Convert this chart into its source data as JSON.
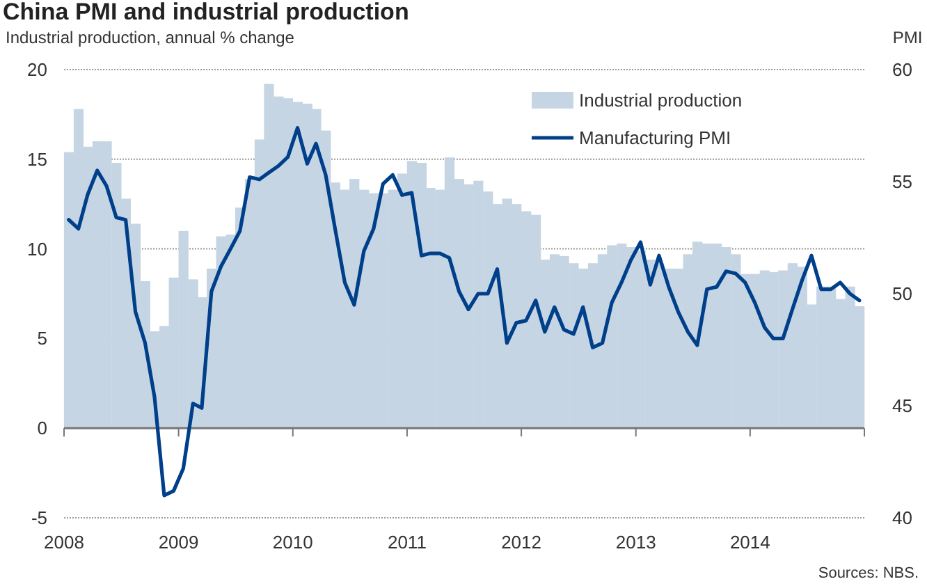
{
  "chart_data": {
    "type": "bar",
    "title": "China PMI and industrial production",
    "ylabel": "Industrial production, annual % change",
    "y2label": "PMI",
    "x": [
      "2008-01-16",
      "2008-02-16",
      "2008-03-16",
      "2008-04-16",
      "2008-05-16",
      "2008-06-16",
      "2008-07-16",
      "2008-08-16",
      "2008-09-16",
      "2008-10-16",
      "2008-11-16",
      "2008-12-16",
      "2009-01-16",
      "2009-02-16",
      "2009-03-16",
      "2009-04-16",
      "2009-05-16",
      "2009-06-16",
      "2009-07-16",
      "2009-08-16",
      "2009-09-16",
      "2009-10-16",
      "2009-11-16",
      "2009-12-16",
      "2010-01-16",
      "2010-02-16",
      "2010-03-16",
      "2010-04-16",
      "2010-05-16",
      "2010-06-16",
      "2010-07-16",
      "2010-08-16",
      "2010-09-16",
      "2010-10-16",
      "2010-11-16",
      "2010-12-16",
      "2011-01-16",
      "2011-02-16",
      "2011-03-16",
      "2011-04-16",
      "2011-05-16",
      "2011-06-16",
      "2011-07-16",
      "2011-08-16",
      "2011-09-16",
      "2011-10-16",
      "2011-11-16",
      "2011-12-16",
      "2012-01-16",
      "2012-02-16",
      "2012-03-16",
      "2012-04-16",
      "2012-05-16",
      "2012-06-16",
      "2012-07-16",
      "2012-08-16",
      "2012-09-16",
      "2012-10-16",
      "2012-11-16",
      "2012-12-16",
      "2013-01-16",
      "2013-02-16",
      "2013-03-16",
      "2013-04-16",
      "2013-05-16",
      "2013-06-16",
      "2013-07-16",
      "2013-08-16",
      "2013-09-16",
      "2013-10-16",
      "2013-11-16",
      "2013-12-16",
      "2014-01-16",
      "2014-02-16",
      "2014-03-16",
      "2014-04-16",
      "2014-05-16",
      "2014-06-16",
      "2014-07-16",
      "2014-08-16",
      "2014-09-16",
      "2014-10-16",
      "2014-11-16",
      "2014-12-16"
    ],
    "series": [
      {
        "name": "Industrial production",
        "color": "#c6d5e3",
        "values": [
          15.4,
          17.8,
          15.7,
          16.0,
          16.0,
          14.8,
          12.8,
          11.4,
          8.2,
          5.4,
          5.7,
          8.4,
          11.0,
          8.3,
          7.3,
          8.9,
          10.7,
          10.8,
          12.3,
          13.9,
          16.1,
          19.2,
          18.5,
          18.4,
          18.2,
          18.1,
          17.8,
          16.6,
          13.7,
          13.3,
          13.9,
          13.3,
          13.1,
          13.1,
          13.3,
          14.2,
          14.9,
          14.8,
          13.4,
          13.3,
          15.1,
          13.9,
          13.6,
          13.8,
          13.2,
          12.5,
          12.8,
          12.5,
          12.1,
          11.9,
          9.4,
          9.7,
          9.6,
          9.2,
          8.9,
          9.2,
          9.7,
          10.2,
          10.3,
          10.1,
          9.9,
          9.4,
          9.2,
          8.9,
          8.9,
          9.7,
          10.4,
          10.3,
          10.3,
          10.1,
          9.7,
          8.6,
          8.6,
          8.8,
          8.7,
          8.8,
          9.2,
          9.0,
          6.9,
          7.9,
          7.9,
          7.2,
          7.9,
          6.8
        ]
      },
      {
        "name": "Manufacturing PMI",
        "type": "line",
        "axis": "y2",
        "color": "#003f8a",
        "values": [
          53.3,
          52.9,
          54.4,
          55.5,
          54.8,
          53.4,
          53.3,
          49.2,
          47.8,
          45.4,
          41.0,
          41.2,
          42.2,
          45.1,
          44.9,
          50.1,
          51.2,
          52.0,
          52.8,
          55.2,
          55.1,
          55.4,
          55.7,
          56.1,
          57.4,
          55.8,
          56.7,
          55.3,
          52.9,
          50.5,
          49.5,
          51.9,
          52.9,
          54.9,
          55.3,
          54.4,
          54.5,
          51.7,
          51.8,
          51.8,
          51.6,
          50.1,
          49.3,
          50.0,
          50.0,
          51.1,
          47.8,
          48.7,
          48.8,
          49.7,
          48.3,
          49.4,
          48.4,
          48.2,
          49.4,
          47.6,
          47.8,
          49.6,
          50.5,
          51.5,
          52.3,
          50.4,
          51.7,
          50.3,
          49.2,
          48.3,
          47.7,
          50.2,
          50.3,
          51.0,
          50.9,
          50.5,
          49.6,
          48.5,
          48.0,
          48.0,
          49.3,
          50.6,
          51.7,
          50.2,
          50.2,
          50.5,
          50.0,
          49.7
        ]
      }
    ],
    "xlim": [
      "2008-01-01",
      "2015-01-01"
    ],
    "xticks": [
      "2008",
      "2009",
      "2010",
      "2011",
      "2012",
      "2013",
      "2014",
      {
        "value": "2015",
        "label": null
      }
    ],
    "ylim": [
      -5,
      20
    ],
    "yticks": [
      -5,
      0,
      5,
      10,
      15,
      20
    ],
    "y2lim": [
      40,
      60
    ],
    "y2ticks": [
      40,
      45,
      50,
      55,
      60
    ],
    "grid": "y",
    "legend": "top right",
    "line_style": "solid",
    "marker": "none",
    "annotations": [
      "Sources: NBS."
    ]
  }
}
